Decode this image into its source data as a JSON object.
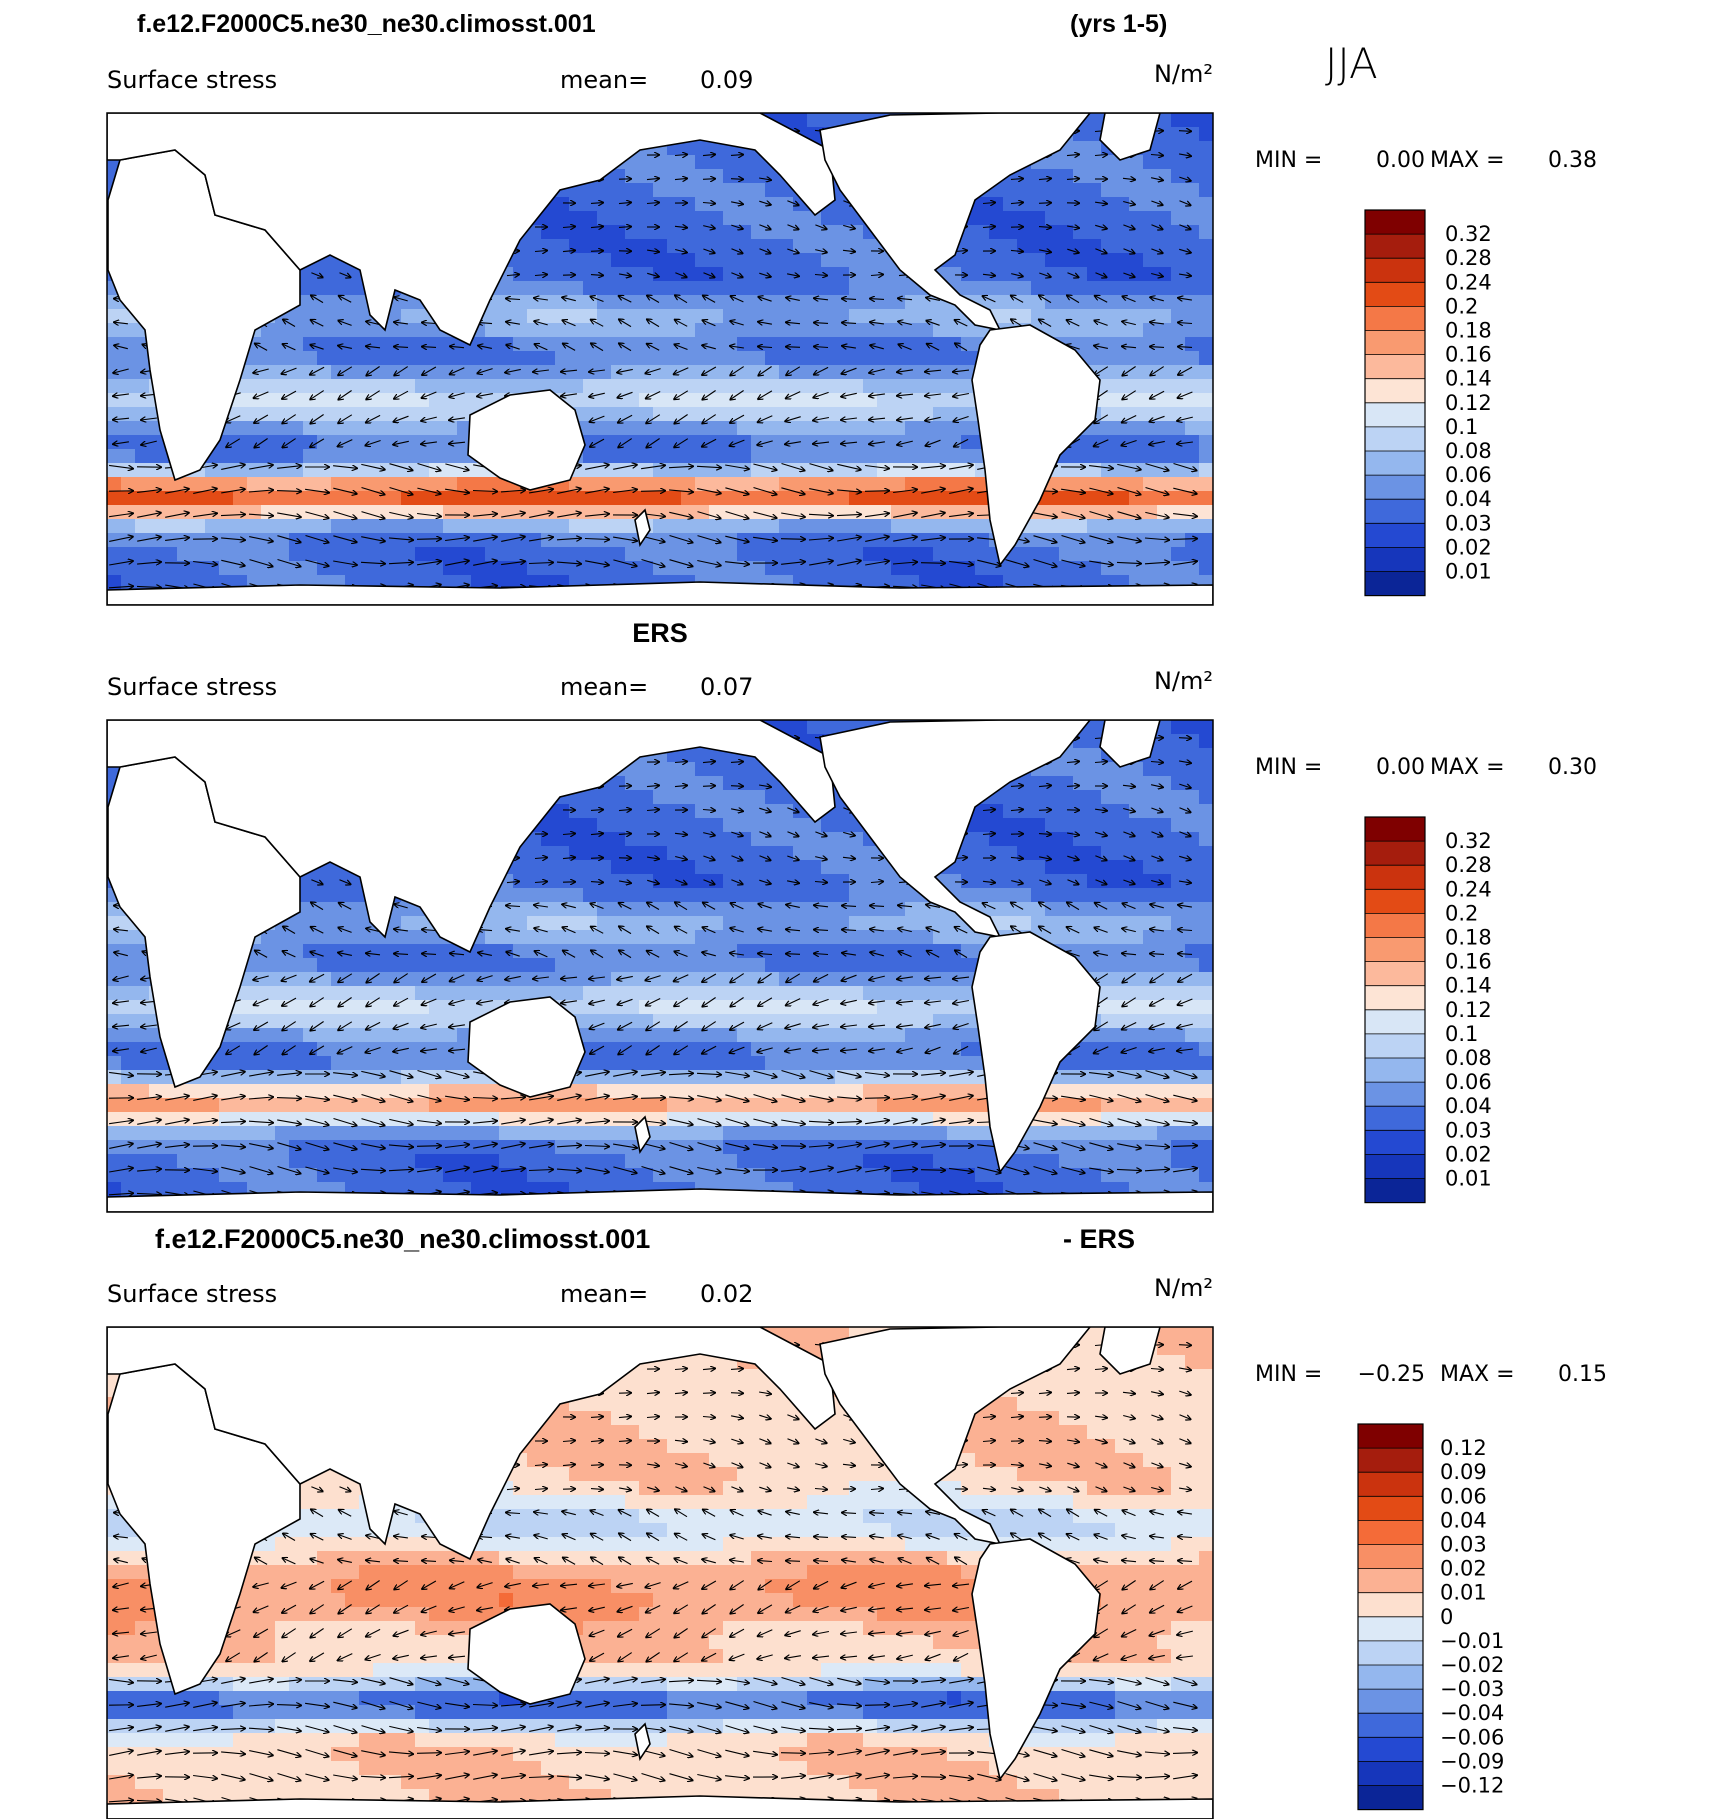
{
  "header": {
    "case_name": "f.e12.F2000C5.ne30_ne30.climosst.001",
    "years": "(yrs 1-5)",
    "season": "JJA"
  },
  "chart_data": [
    {
      "type": "heatmap",
      "title": "",
      "subtitle_left": "Surface stress",
      "mean_label": "mean=",
      "mean_value": "0.09",
      "units": "N/m²",
      "min_label": "MIN =",
      "min_value": "0.00",
      "max_label": "MAX =",
      "max_value": "0.38",
      "colorbar": {
        "labels": [
          "0.32",
          "0.28",
          "0.24",
          "0.2",
          "0.18",
          "0.16",
          "0.14",
          "0.12",
          "0.1",
          "0.08",
          "0.06",
          "0.04",
          "0.03",
          "0.02",
          "0.01"
        ],
        "colors": [
          "#7f0000",
          "#a51d0d",
          "#cb330e",
          "#e34b15",
          "#f47847",
          "#f99a70",
          "#fcb99c",
          "#fde4d5",
          "#d8e6f6",
          "#bcd3f4",
          "#94b7ee",
          "#6b93e4",
          "#3f69db",
          "#2449d2",
          "#1636bb",
          "#0b2597"
        ]
      },
      "map_field": "model"
    },
    {
      "type": "heatmap",
      "title": "ERS",
      "subtitle_left": "Surface stress",
      "mean_label": "mean=",
      "mean_value": "0.07",
      "units": "N/m²",
      "min_label": "MIN =",
      "min_value": "0.00",
      "max_label": "MAX =",
      "max_value": "0.30",
      "colorbar": {
        "labels": [
          "0.32",
          "0.28",
          "0.24",
          "0.2",
          "0.18",
          "0.16",
          "0.14",
          "0.12",
          "0.1",
          "0.08",
          "0.06",
          "0.04",
          "0.03",
          "0.02",
          "0.01"
        ],
        "colors": [
          "#7f0000",
          "#a51d0d",
          "#cb330e",
          "#e34b15",
          "#f47847",
          "#f99a70",
          "#fcb99c",
          "#fde4d5",
          "#d8e6f6",
          "#bcd3f4",
          "#94b7ee",
          "#6b93e4",
          "#3f69db",
          "#2449d2",
          "#1636bb",
          "#0b2597"
        ]
      },
      "map_field": "obs"
    },
    {
      "type": "heatmap",
      "title": "f.e12.F2000C5.ne30_ne30.climosst.001",
      "title_right": "- ERS",
      "subtitle_left": "Surface stress",
      "mean_label": "mean=",
      "mean_value": "0.02",
      "units": "N/m²",
      "min_label": "MIN =",
      "min_value": "−0.25",
      "max_label": "MAX =",
      "max_value": "0.15",
      "colorbar": {
        "labels": [
          "0.12",
          "0.09",
          "0.06",
          "0.04",
          "0.03",
          "0.02",
          "0.01",
          "0",
          "−0.01",
          "−0.02",
          "−0.03",
          "−0.04",
          "−0.06",
          "−0.09",
          "−0.12"
        ],
        "colors": [
          "#7f0000",
          "#a51d0d",
          "#cb330e",
          "#e34b15",
          "#f46b38",
          "#f88f65",
          "#fbb193",
          "#fde0cf",
          "#dce9f7",
          "#bcd3f4",
          "#94b7ee",
          "#6b93e4",
          "#3f69db",
          "#2449d2",
          "#1636bb",
          "#0b2597"
        ]
      },
      "map_field": "diff"
    }
  ]
}
